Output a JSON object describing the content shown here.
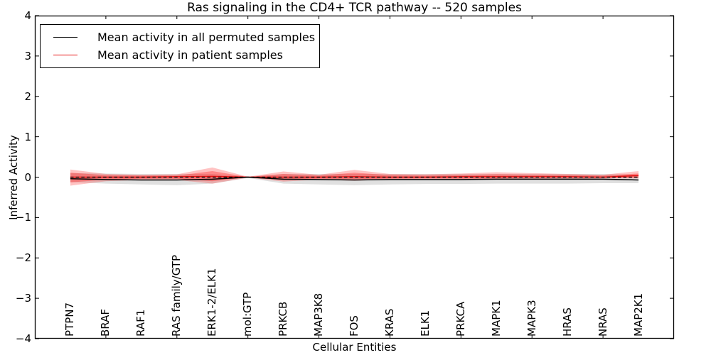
{
  "title": "Ras signaling in the CD4+ TCR pathway -- 520 samples",
  "axes": {
    "x_label": "Cellular Entities",
    "y_label": "Inferred Activity"
  },
  "legend": {
    "items": [
      {
        "label": "Mean activity in all permuted samples",
        "color": "#000000"
      },
      {
        "label": "Mean activity in patient samples",
        "color": "#e81010"
      }
    ]
  },
  "chart_data": {
    "type": "line",
    "title": "Ras signaling in the CD4+ TCR pathway -- 520 samples",
    "xlabel": "Cellular Entities",
    "ylabel": "Inferred Activity",
    "categories": [
      "PTPN7",
      "BRAF",
      "RAF1",
      "RAS family/GTP",
      "ERK1-2/ELK1",
      "mol:GTP",
      "PRKCB",
      "MAP3K8",
      "FOS",
      "KRAS",
      "ELK1",
      "PRKCA",
      "MAPK1",
      "MAPK3",
      "HRAS",
      "NRAS",
      "MAP2K1"
    ],
    "ylim": [
      -4,
      4
    ],
    "ytick_labels": [
      "4",
      "3",
      "2",
      "1",
      "0",
      "−1",
      "−2",
      "−3",
      "−4"
    ],
    "ytick_values": [
      4,
      3,
      2,
      1,
      0,
      -1,
      -2,
      -3,
      -4
    ],
    "xtick_category_indices": [
      1,
      3,
      5,
      7,
      9,
      11,
      13,
      15
    ],
    "xlim_pad": 1,
    "grid": false,
    "legend_position": "upper left",
    "zero_line": {
      "value": 0,
      "style": "dashed"
    },
    "series": [
      {
        "name": "Mean activity in all permuted samples",
        "role": "line",
        "color": "#000000",
        "values": [
          -0.04,
          -0.06,
          -0.07,
          -0.07,
          -0.05,
          0.0,
          -0.05,
          -0.06,
          -0.07,
          -0.06,
          -0.06,
          -0.06,
          -0.05,
          -0.05,
          -0.05,
          -0.05,
          -0.07
        ]
      },
      {
        "name": "Mean activity in patient samples",
        "role": "line",
        "color": "#e81010",
        "values": [
          0.0,
          0.0,
          0.0,
          0.01,
          0.02,
          0.0,
          0.0,
          0.0,
          0.01,
          0.0,
          0.0,
          0.01,
          0.01,
          0.01,
          0.01,
          0.0,
          0.04
        ]
      },
      {
        "name": "Permuted samples band upper",
        "role": "band-upper",
        "band": "permuted",
        "values": [
          0.1,
          0.09,
          0.08,
          0.08,
          0.08,
          0.01,
          0.08,
          0.08,
          0.08,
          0.08,
          0.08,
          0.08,
          0.08,
          0.08,
          0.08,
          0.08,
          0.06
        ]
      },
      {
        "name": "Permuted samples band lower",
        "role": "band-lower",
        "band": "permuted",
        "values": [
          -0.12,
          -0.16,
          -0.18,
          -0.2,
          -0.16,
          -0.02,
          -0.16,
          -0.18,
          -0.2,
          -0.18,
          -0.17,
          -0.17,
          -0.16,
          -0.16,
          -0.16,
          -0.15,
          -0.15
        ]
      },
      {
        "name": "Patient samples band upper",
        "role": "band-upper",
        "band": "patient",
        "values": [
          0.19,
          0.08,
          0.06,
          0.07,
          0.24,
          0.01,
          0.14,
          0.06,
          0.18,
          0.08,
          0.07,
          0.09,
          0.12,
          0.1,
          0.08,
          0.06,
          0.15
        ]
      },
      {
        "name": "Patient samples band lower",
        "role": "band-lower",
        "band": "patient",
        "values": [
          -0.21,
          -0.1,
          -0.07,
          -0.07,
          -0.16,
          -0.01,
          -0.11,
          -0.06,
          -0.09,
          -0.06,
          -0.05,
          -0.06,
          -0.05,
          -0.04,
          -0.04,
          -0.03,
          -0.03
        ]
      },
      {
        "name": "Patient samples inner band upper",
        "role": "band-upper",
        "band": "patient-inner",
        "values": [
          0.11,
          0.05,
          0.04,
          0.04,
          0.15,
          0.005,
          0.08,
          0.04,
          0.11,
          0.05,
          0.04,
          0.05,
          0.07,
          0.06,
          0.05,
          0.04,
          0.09
        ]
      },
      {
        "name": "Patient samples inner band lower",
        "role": "band-lower",
        "band": "patient-inner",
        "values": [
          -0.13,
          -0.06,
          -0.04,
          -0.04,
          -0.1,
          -0.005,
          -0.07,
          -0.04,
          -0.05,
          -0.04,
          -0.03,
          -0.04,
          -0.03,
          -0.02,
          -0.02,
          -0.02,
          -0.02
        ]
      }
    ],
    "colors": {
      "permuted_band": "rgba(0,0,0,0.12)",
      "patient_band": "rgba(255,16,16,0.25)",
      "patient_band_inner": "rgba(255,16,16,0.33)",
      "permuted_line": "#000000",
      "patient_line": "#e81010",
      "zero_line": "#000000",
      "frame": "#000000"
    }
  }
}
